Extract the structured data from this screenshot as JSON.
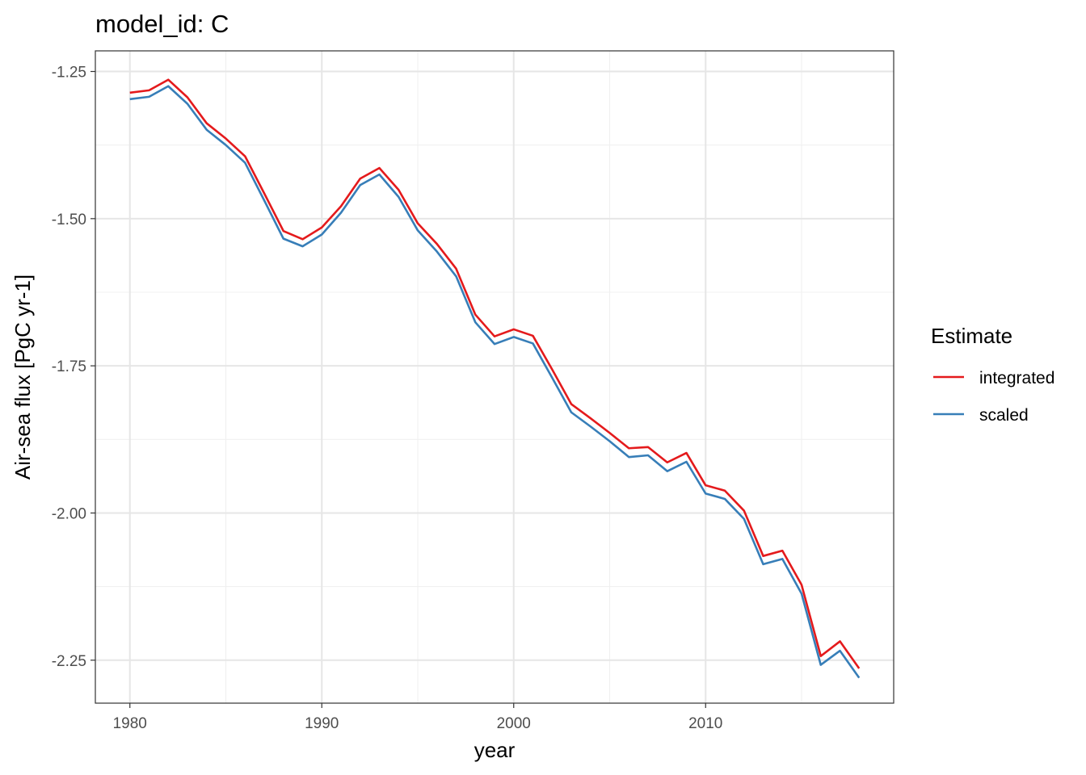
{
  "chart_data": {
    "type": "line",
    "title": "model_id: C",
    "xlabel": "year",
    "ylabel": "Air-sea flux [PgC yr-1]",
    "xlim": [
      1978.2,
      2019.8
    ],
    "ylim": [
      -2.323,
      -1.215
    ],
    "x_ticks": [
      1980,
      1990,
      2000,
      2010
    ],
    "x_tick_labels": [
      "1980",
      "1990",
      "2000",
      "2010"
    ],
    "y_ticks": [
      -1.25,
      -1.5,
      -1.75,
      -2.0,
      -2.25
    ],
    "y_tick_labels": [
      "-1.25",
      "-1.50",
      "-1.75",
      "-2.00",
      "-2.25"
    ],
    "grid": true,
    "legend_title": "Estimate",
    "legend_position": "right",
    "x": [
      1980,
      1981,
      1982,
      1983,
      1984,
      1985,
      1986,
      1987,
      1988,
      1989,
      1990,
      1991,
      1992,
      1993,
      1994,
      1995,
      1996,
      1997,
      1998,
      1999,
      2000,
      2001,
      2002,
      2003,
      2004,
      2005,
      2006,
      2007,
      2008,
      2009,
      2010,
      2011,
      2012,
      2013,
      2014,
      2015,
      2016,
      2017,
      2018
    ],
    "series": [
      {
        "name": "integrated",
        "color": "#E41A1C",
        "values": [
          -1.286,
          -1.282,
          -1.264,
          -1.294,
          -1.338,
          -1.364,
          -1.394,
          -1.457,
          -1.521,
          -1.535,
          -1.515,
          -1.479,
          -1.432,
          -1.414,
          -1.451,
          -1.508,
          -1.543,
          -1.585,
          -1.663,
          -1.7,
          -1.688,
          -1.699,
          -1.756,
          -1.815,
          -1.839,
          -1.864,
          -1.89,
          -1.888,
          -1.914,
          -1.898,
          -1.953,
          -1.962,
          -1.996,
          -2.073,
          -2.064,
          -2.122,
          -2.243,
          -2.218,
          -2.264
        ]
      },
      {
        "name": "scaled",
        "color": "#377EB8",
        "values": [
          -1.297,
          -1.293,
          -1.275,
          -1.305,
          -1.349,
          -1.375,
          -1.405,
          -1.469,
          -1.534,
          -1.547,
          -1.527,
          -1.49,
          -1.443,
          -1.425,
          -1.463,
          -1.52,
          -1.556,
          -1.598,
          -1.676,
          -1.713,
          -1.701,
          -1.712,
          -1.77,
          -1.829,
          -1.853,
          -1.878,
          -1.905,
          -1.902,
          -1.929,
          -1.913,
          -1.967,
          -1.976,
          -2.01,
          -2.087,
          -2.078,
          -2.137,
          -2.258,
          -2.234,
          -2.28
        ]
      }
    ]
  }
}
